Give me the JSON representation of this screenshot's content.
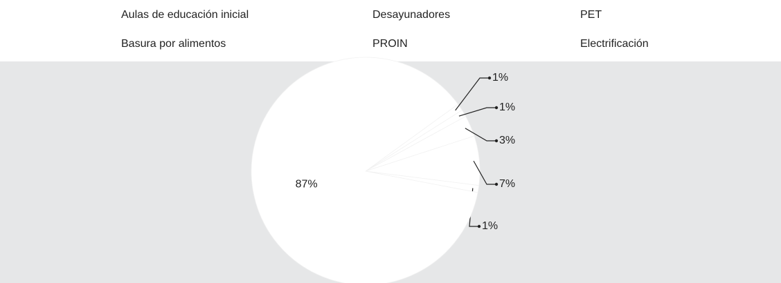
{
  "chart_data": {
    "type": "pie",
    "categories": [
      "Aulas de educación inicial",
      "Desayunadores",
      "PET",
      "Basura por alimentos",
      "PROIN",
      "Electrificación"
    ],
    "values": [
      1,
      1,
      3,
      7,
      1,
      87
    ],
    "value_labels": [
      "1%",
      "1%",
      "3%",
      "7%",
      "1%",
      "87%"
    ],
    "colors": [
      "#ffffff",
      "#ffffff",
      "#ffffff",
      "#ffffff",
      "#ffffff",
      "#ffffff"
    ]
  }
}
